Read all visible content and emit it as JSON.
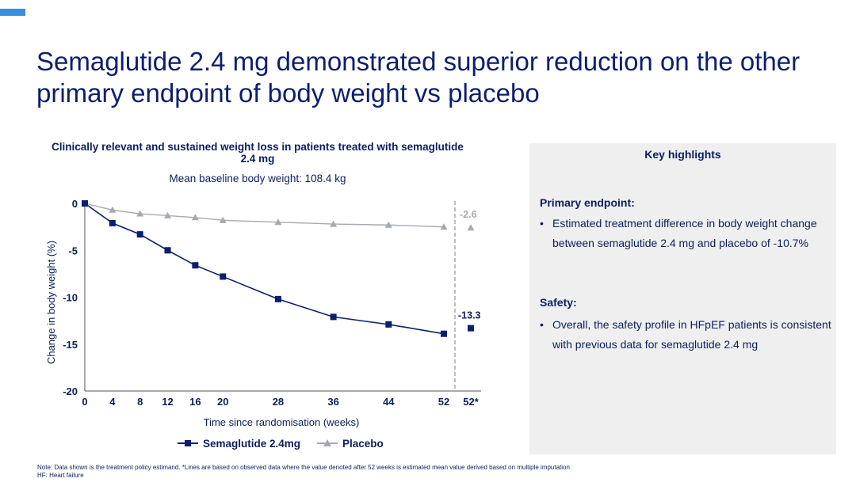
{
  "slide": {
    "title": "Semaglutide 2.4 mg demonstrated superior reduction on the other primary endpoint of body weight vs placebo"
  },
  "colors": {
    "accent": "#3a8fdb",
    "semaglutide": "#0b1f6e",
    "placebo": "#a6aab0",
    "panel_bg": "#efefef"
  },
  "chart_data": {
    "type": "line",
    "title": "Clinically relevant and sustained weight loss in patients treated with semaglutide 2.4 mg",
    "subtitle": "Mean baseline body weight: 108.4 kg",
    "xlabel": "Time since randomisation (weeks)",
    "ylabel": "Change in body weight (%)",
    "ylim": [
      -20,
      0
    ],
    "yticks": [
      0,
      -5,
      -10,
      -15,
      -20
    ],
    "xtick_labels": [
      "0",
      "4",
      "8",
      "12",
      "16",
      "20",
      "28",
      "36",
      "44",
      "52",
      "52*"
    ],
    "x": [
      0,
      4,
      8,
      12,
      16,
      20,
      28,
      36,
      44,
      52
    ],
    "series": [
      {
        "name": "Semaglutide 2.4mg",
        "marker": "square",
        "values": [
          0,
          -2.1,
          -3.3,
          -5.0,
          -6.6,
          -7.8,
          -10.2,
          -12.1,
          -12.9,
          -13.9
        ],
        "estimate_52": -13.3,
        "estimate_label": "-13.3"
      },
      {
        "name": "Placebo",
        "marker": "triangle",
        "values": [
          0,
          -0.7,
          -1.1,
          -1.3,
          -1.5,
          -1.8,
          -2.0,
          -2.2,
          -2.3,
          -2.5
        ],
        "estimate_52": -2.6,
        "estimate_label": "-2.6"
      }
    ],
    "grid": false,
    "legend": "bottom"
  },
  "panel": {
    "title": "Key highlights",
    "primary_head": "Primary endpoint:",
    "primary_text": "Estimated treatment difference in body weight change between semaglutide 2.4 mg and placebo of -10.7%",
    "safety_head": "Safety:",
    "safety_text": "Overall, the safety profile in HFpEF patients is consistent with previous data for semaglutide 2.4 mg"
  },
  "footnotes": {
    "note": "Note: Data shown is the treatment policy estimand. *Lines are based on observed data where the value denoted after 52 weeks is estimated mean value derived based on multiple imputation",
    "abbrev": "HF: Heart failure"
  }
}
